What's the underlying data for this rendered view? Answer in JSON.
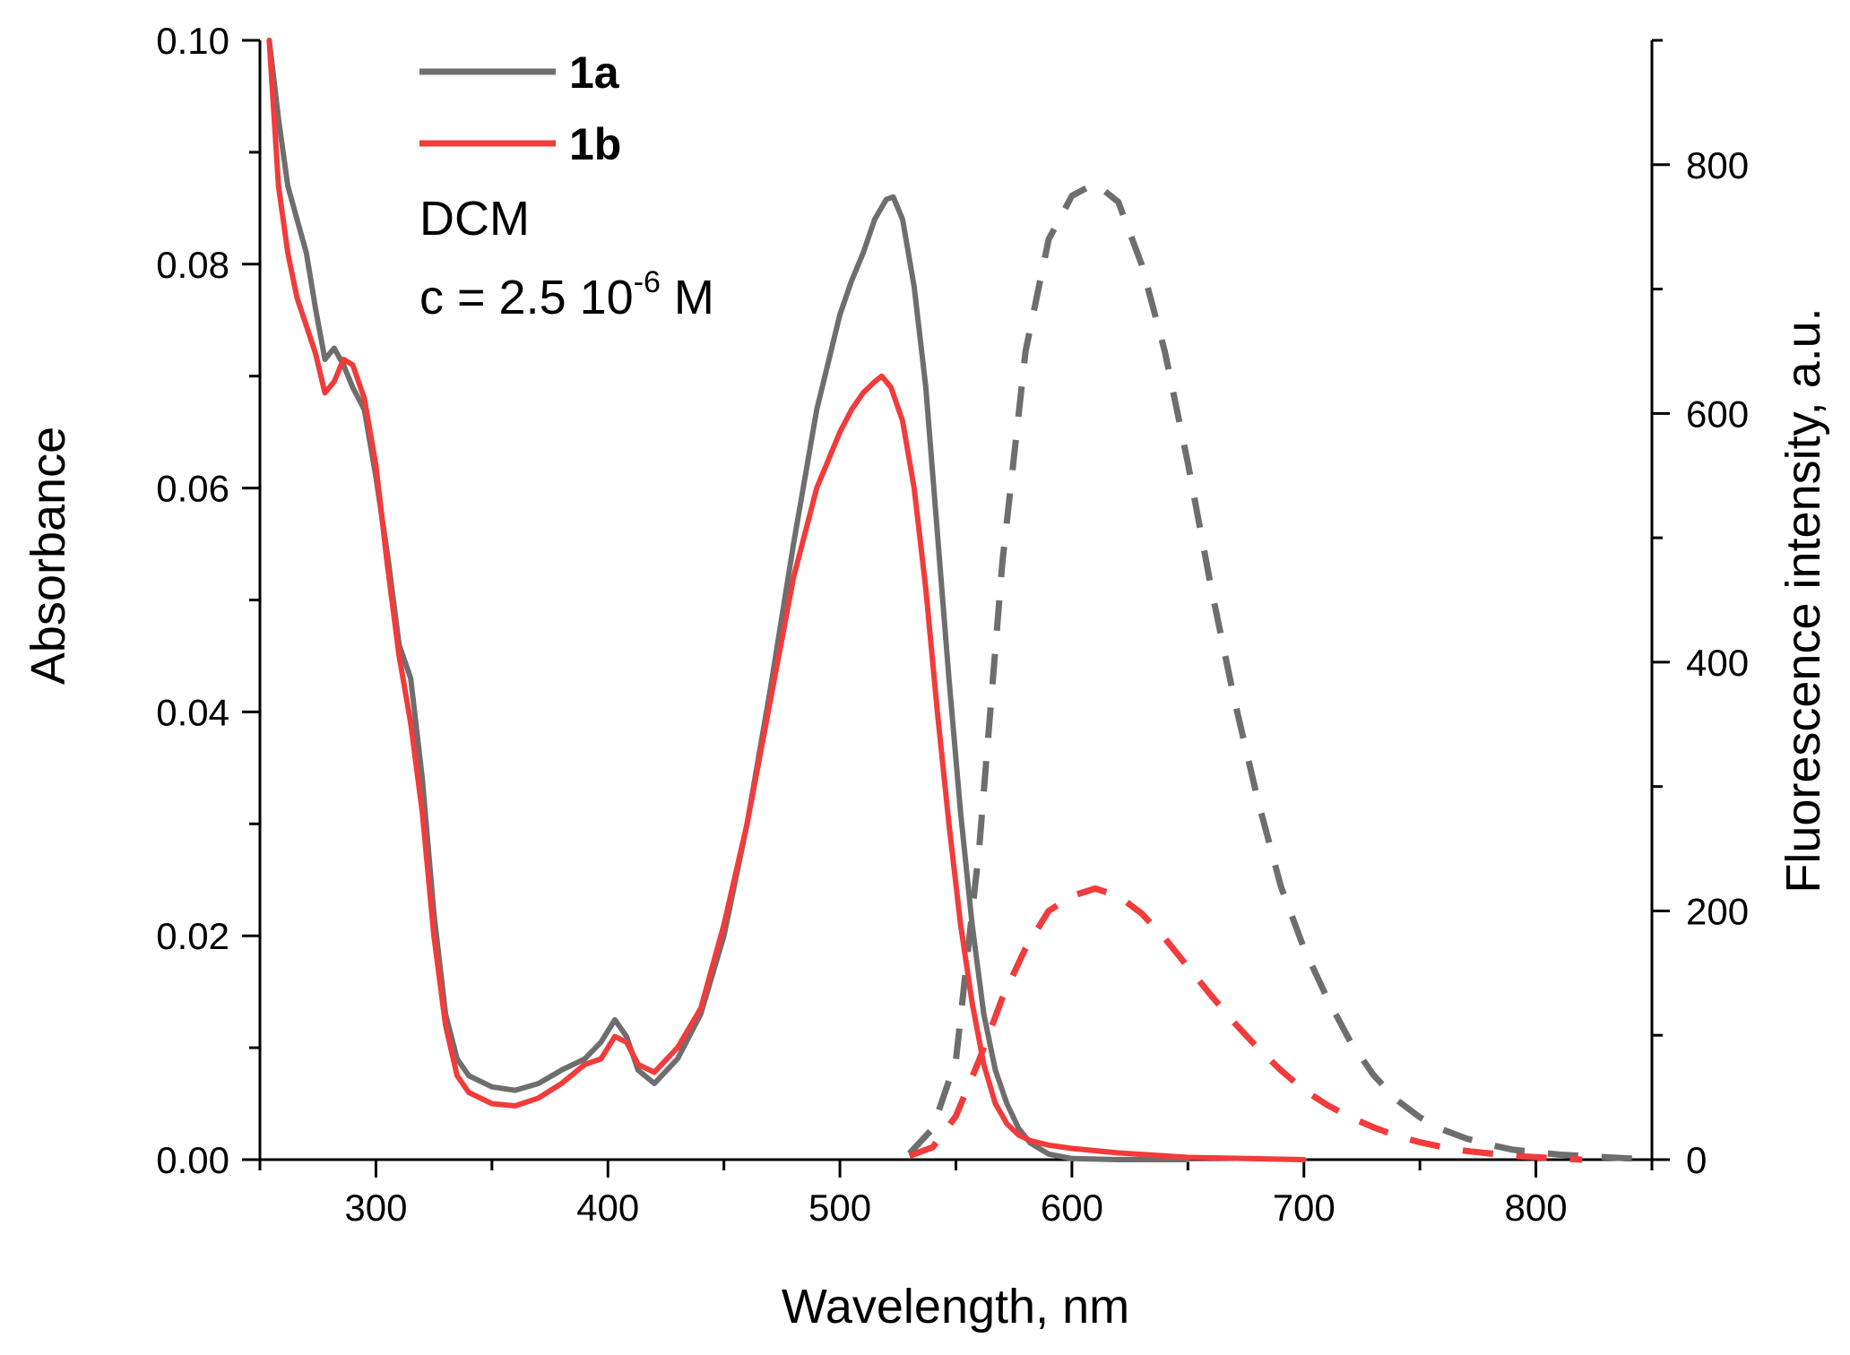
{
  "chart_data": {
    "type": "line",
    "title": "",
    "xlabel": "Wavelength, nm",
    "ylabel": "Absorbance",
    "y2label": "Fluorescence intensity, a.u.",
    "xlim": [
      250,
      850
    ],
    "ylim": [
      0,
      0.1
    ],
    "y2lim": [
      0,
      900
    ],
    "x_ticks": [
      300,
      400,
      500,
      600,
      700,
      800
    ],
    "y_ticks": [
      0.0,
      0.02,
      0.04,
      0.06,
      0.08,
      0.1
    ],
    "y_tick_labels": [
      "0.00",
      "0.02",
      "0.04",
      "0.06",
      "0.08",
      "0.10"
    ],
    "y2_ticks": [
      0,
      200,
      400,
      600,
      800
    ],
    "y2_tick_labels": [
      "0",
      "200",
      "400",
      "600",
      "800"
    ],
    "colors": {
      "1a": "#6e6e6e",
      "1b": "#f23b3b"
    },
    "legend": {
      "position": "top-left",
      "entries": [
        "1a",
        "1b"
      ]
    },
    "annotations": {
      "solvent": "DCM",
      "conc_prefix": "c = 2.5 10",
      "conc_exp": "-6",
      "conc_suffix": " M"
    },
    "series": [
      {
        "name": "1a",
        "kind": "absorbance",
        "axis": "left",
        "style": "solid",
        "x": [
          254,
          258,
          262,
          266,
          270,
          274,
          278,
          282,
          286,
          290,
          295,
          300,
          305,
          310,
          315,
          320,
          325,
          330,
          335,
          340,
          350,
          360,
          370,
          380,
          390,
          397,
          403,
          408,
          413,
          420,
          430,
          440,
          450,
          460,
          470,
          480,
          490,
          500,
          505,
          510,
          515,
          520,
          523,
          527,
          532,
          537,
          542,
          547,
          552,
          557,
          562,
          567,
          572,
          577,
          582,
          590,
          600,
          620,
          650
        ],
        "y": [
          0.1,
          0.093,
          0.087,
          0.084,
          0.081,
          0.076,
          0.0715,
          0.0725,
          0.071,
          0.069,
          0.067,
          0.061,
          0.054,
          0.046,
          0.043,
          0.034,
          0.022,
          0.013,
          0.009,
          0.0075,
          0.0065,
          0.0062,
          0.0068,
          0.008,
          0.009,
          0.0105,
          0.0125,
          0.011,
          0.008,
          0.0068,
          0.009,
          0.013,
          0.02,
          0.03,
          0.042,
          0.055,
          0.067,
          0.0755,
          0.0785,
          0.081,
          0.084,
          0.0858,
          0.086,
          0.084,
          0.078,
          0.069,
          0.056,
          0.043,
          0.031,
          0.021,
          0.013,
          0.008,
          0.005,
          0.0028,
          0.0015,
          0.0005,
          0.0001,
          0.0,
          0.0
        ]
      },
      {
        "name": "1b",
        "kind": "absorbance",
        "axis": "left",
        "style": "solid",
        "x": [
          254,
          258,
          262,
          266,
          270,
          274,
          278,
          282,
          286,
          290,
          295,
          300,
          305,
          310,
          315,
          320,
          325,
          330,
          335,
          340,
          350,
          360,
          370,
          380,
          390,
          397,
          403,
          408,
          413,
          420,
          430,
          440,
          450,
          460,
          470,
          480,
          490,
          500,
          505,
          510,
          515,
          518,
          522,
          527,
          532,
          537,
          542,
          547,
          552,
          557,
          562,
          567,
          572,
          577,
          582,
          590,
          600,
          620,
          650,
          700
        ],
        "y": [
          0.1,
          0.087,
          0.081,
          0.077,
          0.0745,
          0.072,
          0.0685,
          0.0695,
          0.0715,
          0.071,
          0.068,
          0.062,
          0.053,
          0.045,
          0.039,
          0.031,
          0.02,
          0.012,
          0.0075,
          0.006,
          0.005,
          0.0048,
          0.0055,
          0.0068,
          0.0085,
          0.009,
          0.011,
          0.0105,
          0.0085,
          0.0078,
          0.01,
          0.0135,
          0.021,
          0.03,
          0.041,
          0.052,
          0.06,
          0.065,
          0.067,
          0.0685,
          0.0695,
          0.07,
          0.069,
          0.066,
          0.06,
          0.051,
          0.04,
          0.03,
          0.021,
          0.014,
          0.0085,
          0.005,
          0.0032,
          0.0022,
          0.0017,
          0.0013,
          0.001,
          0.0006,
          0.0002,
          0.0
        ]
      },
      {
        "name": "1a",
        "kind": "fluorescence",
        "axis": "right",
        "style": "dashed",
        "x": [
          530,
          540,
          550,
          560,
          570,
          580,
          590,
          600,
          610,
          620,
          630,
          640,
          650,
          660,
          670,
          680,
          690,
          700,
          710,
          720,
          730,
          740,
          750,
          760,
          770,
          780,
          790,
          800,
          810,
          820,
          830,
          840,
          850
        ],
        "y": [
          5,
          25,
          80,
          250,
          480,
          650,
          740,
          775,
          785,
          770,
          720,
          650,
          560,
          460,
          370,
          290,
          220,
          170,
          130,
          95,
          68,
          48,
          34,
          24,
          17,
          12,
          8,
          6,
          4,
          3,
          2,
          1,
          0
        ]
      },
      {
        "name": "1b",
        "kind": "fluorescence",
        "axis": "right",
        "style": "dashed",
        "x": [
          530,
          540,
          550,
          560,
          570,
          580,
          590,
          600,
          610,
          620,
          630,
          640,
          650,
          660,
          670,
          680,
          690,
          700,
          710,
          720,
          730,
          740,
          750,
          760,
          770,
          780,
          790,
          800,
          810,
          820
        ],
        "y": [
          3,
          10,
          35,
          80,
          130,
          170,
          200,
          212,
          218,
          212,
          198,
          178,
          155,
          132,
          110,
          90,
          72,
          56,
          44,
          34,
          26,
          19,
          14,
          10,
          7,
          5,
          3,
          2,
          1,
          0
        ]
      }
    ]
  }
}
